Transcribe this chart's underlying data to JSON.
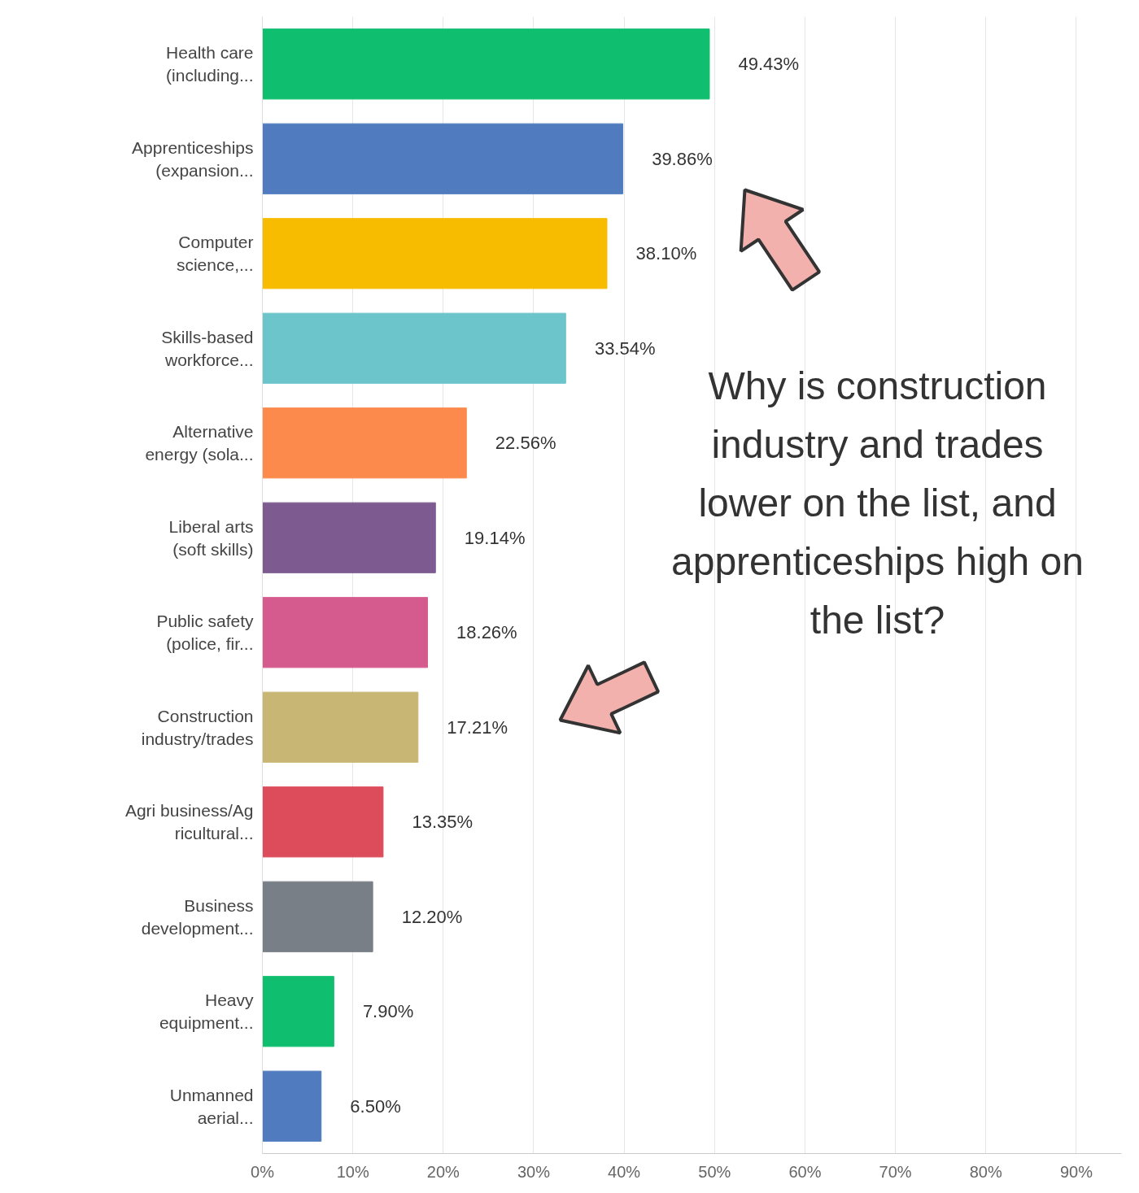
{
  "chart_data": {
    "type": "bar",
    "orientation": "horizontal",
    "categories": [
      "Health care (including...",
      "Apprenticeships (expansion...",
      "Computer science,...",
      "Skills-based workforce...",
      "Alternative energy (sola...",
      "Liberal arts (soft skills)",
      "Public safety (police, fir...",
      "Construction industry/trades",
      "Agri business/Ag ricultural...",
      "Business development...",
      "Heavy equipment...",
      "Unmanned aerial..."
    ],
    "values": [
      49.43,
      39.86,
      38.1,
      33.54,
      22.56,
      19.14,
      18.26,
      17.21,
      13.35,
      12.2,
      7.9,
      6.5
    ],
    "colors": [
      "#0fbf6f",
      "#507cbf",
      "#f7bc00",
      "#6cc5cb",
      "#fb8a4c",
      "#7d5b91",
      "#d55b8e",
      "#c8b675",
      "#dc4c5a",
      "#787f87",
      "#0fbf6f",
      "#507cbf"
    ],
    "value_labels": [
      "49.43%",
      "39.86%",
      "38.10%",
      "33.54%",
      "22.56%",
      "19.14%",
      "18.26%",
      "17.21%",
      "13.35%",
      "12.20%",
      "7.90%",
      "6.50%"
    ],
    "xlim": [
      0,
      95
    ],
    "xticks": [
      {
        "value": 0,
        "label": "0%"
      },
      {
        "value": 10,
        "label": "10%"
      },
      {
        "value": 20,
        "label": "20%"
      },
      {
        "value": 30,
        "label": "30%"
      },
      {
        "value": 40,
        "label": "40%"
      },
      {
        "value": 50,
        "label": "50%"
      },
      {
        "value": 60,
        "label": "60%"
      },
      {
        "value": 70,
        "label": "70%"
      },
      {
        "value": 80,
        "label": "80%"
      },
      {
        "value": 90,
        "label": "90%"
      }
    ],
    "grid": "x",
    "annotations": [
      "Why is construction industry and trades lower on the list, and apprenticeships high on the list?"
    ]
  }
}
